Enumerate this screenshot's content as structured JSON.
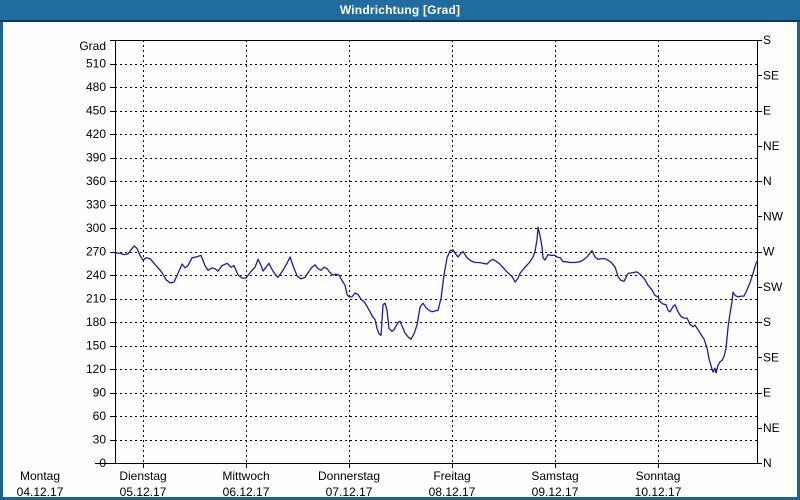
{
  "window": {
    "title": "Windrichtung [Grad]"
  },
  "colors": {
    "frame": "#1f6296",
    "titlebar_bg": "#206ca0",
    "titlebar_border": "#0b3b60",
    "plot_bg": "#fefefe",
    "grid": "#000000",
    "axis": "#000000",
    "series_line": "#1a1ab8",
    "label_text": "#000000",
    "title_text": "#ffffff"
  },
  "chart_data": {
    "type": "line",
    "title": "Windrichtung [Grad]",
    "ylabel": "Grad",
    "grid": true,
    "legend": "none",
    "y_axis": {
      "min": 0,
      "max": 540,
      "tick_step": 30,
      "unit_label": "Grad"
    },
    "y_axis_right": {
      "tick_step": 45,
      "labels": [
        {
          "deg": 540,
          "label": "S"
        },
        {
          "deg": 495,
          "label": "SE"
        },
        {
          "deg": 450,
          "label": "E"
        },
        {
          "deg": 405,
          "label": "NE"
        },
        {
          "deg": 360,
          "label": "N"
        },
        {
          "deg": 315,
          "label": "NW"
        },
        {
          "deg": 270,
          "label": "W"
        },
        {
          "deg": 225,
          "label": "SW"
        },
        {
          "deg": 180,
          "label": "S"
        },
        {
          "deg": 135,
          "label": "SE"
        },
        {
          "deg": 90,
          "label": "E"
        },
        {
          "deg": 45,
          "label": "NE"
        },
        {
          "deg": 0,
          "label": "N"
        }
      ]
    },
    "x_axis": {
      "start_t": 0.728,
      "end_t": 6.961,
      "gridline_ts": [
        1,
        2,
        3,
        4,
        5,
        6
      ],
      "days": [
        {
          "name": "Montag",
          "date": "04.12.17",
          "t": 0
        },
        {
          "name": "Dienstag",
          "date": "05.12.17",
          "t": 1
        },
        {
          "name": "Mittwoch",
          "date": "06.12.17",
          "t": 2
        },
        {
          "name": "Donnerstag",
          "date": "07.12.17",
          "t": 3
        },
        {
          "name": "Freitag",
          "date": "08.12.17",
          "t": 4
        },
        {
          "name": "Samstag",
          "date": "09.12.17",
          "t": 5
        },
        {
          "name": "Sonntag",
          "date": "10.12.17",
          "t": 6
        }
      ]
    },
    "series": [
      {
        "name": "Windrichtung",
        "unit": "Grad",
        "points": [
          [
            0.728,
            268
          ],
          [
            0.777,
            268
          ],
          [
            0.816,
            266
          ],
          [
            0.854,
            267
          ],
          [
            0.883,
            272
          ],
          [
            0.913,
            277
          ],
          [
            0.942,
            274
          ],
          [
            0.971,
            265
          ],
          [
            1.0,
            259
          ],
          [
            1.029,
            262
          ],
          [
            1.068,
            261
          ],
          [
            1.107,
            255
          ],
          [
            1.146,
            249
          ],
          [
            1.184,
            243
          ],
          [
            1.223,
            234
          ],
          [
            1.262,
            230
          ],
          [
            1.301,
            231
          ],
          [
            1.34,
            242
          ],
          [
            1.379,
            254
          ],
          [
            1.408,
            249
          ],
          [
            1.437,
            252
          ],
          [
            1.476,
            262
          ],
          [
            1.515,
            263
          ],
          [
            1.563,
            265
          ],
          [
            1.602,
            252
          ],
          [
            1.631,
            246
          ],
          [
            1.67,
            249
          ],
          [
            1.699,
            248
          ],
          [
            1.728,
            245
          ],
          [
            1.767,
            252
          ],
          [
            1.816,
            255
          ],
          [
            1.854,
            250
          ],
          [
            1.883,
            252
          ],
          [
            1.922,
            240
          ],
          [
            1.961,
            236
          ],
          [
            2.0,
            236
          ],
          [
            2.039,
            243
          ],
          [
            2.087,
            250
          ],
          [
            2.117,
            260
          ],
          [
            2.146,
            252
          ],
          [
            2.165,
            245
          ],
          [
            2.194,
            250
          ],
          [
            2.223,
            255
          ],
          [
            2.252,
            247
          ],
          [
            2.282,
            241
          ],
          [
            2.311,
            237
          ],
          [
            2.359,
            246
          ],
          [
            2.398,
            255
          ],
          [
            2.427,
            263
          ],
          [
            2.456,
            252
          ],
          [
            2.495,
            239
          ],
          [
            2.534,
            235
          ],
          [
            2.573,
            237
          ],
          [
            2.612,
            245
          ],
          [
            2.641,
            250
          ],
          [
            2.67,
            253
          ],
          [
            2.699,
            248
          ],
          [
            2.728,
            246
          ],
          [
            2.757,
            250
          ],
          [
            2.786,
            248
          ],
          [
            2.816,
            243
          ],
          [
            2.845,
            240
          ],
          [
            2.874,
            241
          ],
          [
            2.903,
            240
          ],
          [
            2.932,
            233
          ],
          [
            2.961,
            227
          ],
          [
            2.981,
            215
          ],
          [
            3.0,
            212
          ],
          [
            3.029,
            212
          ],
          [
            3.058,
            217
          ],
          [
            3.087,
            215
          ],
          [
            3.117,
            209
          ],
          [
            3.146,
            206
          ],
          [
            3.175,
            200
          ],
          [
            3.204,
            193
          ],
          [
            3.233,
            186
          ],
          [
            3.252,
            183
          ],
          [
            3.272,
            172
          ],
          [
            3.291,
            165
          ],
          [
            3.311,
            163
          ],
          [
            3.33,
            202
          ],
          [
            3.35,
            204
          ],
          [
            3.369,
            195
          ],
          [
            3.388,
            172
          ],
          [
            3.417,
            168
          ],
          [
            3.437,
            170
          ],
          [
            3.456,
            175
          ],
          [
            3.476,
            179
          ],
          [
            3.495,
            181
          ],
          [
            3.524,
            172
          ],
          [
            3.544,
            166
          ],
          [
            3.573,
            161
          ],
          [
            3.602,
            158
          ],
          [
            3.631,
            165
          ],
          [
            3.66,
            176
          ],
          [
            3.689,
            199
          ],
          [
            3.718,
            204
          ],
          [
            3.748,
            198
          ],
          [
            3.777,
            195
          ],
          [
            3.806,
            193
          ],
          [
            3.835,
            194
          ],
          [
            3.864,
            195
          ],
          [
            3.893,
            210
          ],
          [
            3.922,
            240
          ],
          [
            3.951,
            262
          ],
          [
            3.981,
            271
          ],
          [
            4.01,
            272
          ],
          [
            4.029,
            268
          ],
          [
            4.058,
            263
          ],
          [
            4.087,
            268
          ],
          [
            4.107,
            270
          ],
          [
            4.136,
            264
          ],
          [
            4.155,
            261
          ],
          [
            4.184,
            258
          ],
          [
            4.223,
            256
          ],
          [
            4.262,
            256
          ],
          [
            4.301,
            255
          ],
          [
            4.34,
            254
          ],
          [
            4.369,
            258
          ],
          [
            4.398,
            260
          ],
          [
            4.456,
            255
          ],
          [
            4.485,
            251
          ],
          [
            4.534,
            244
          ],
          [
            4.583,
            238
          ],
          [
            4.612,
            231
          ],
          [
            4.641,
            236
          ],
          [
            4.66,
            242
          ],
          [
            4.689,
            247
          ],
          [
            4.709,
            250
          ],
          [
            4.738,
            254
          ],
          [
            4.757,
            257
          ],
          [
            4.786,
            263
          ],
          [
            4.806,
            270
          ],
          [
            4.825,
            285
          ],
          [
            4.835,
            301
          ],
          [
            4.854,
            290
          ],
          [
            4.874,
            276
          ],
          [
            4.883,
            262
          ],
          [
            4.903,
            259
          ],
          [
            4.932,
            266
          ],
          [
            4.961,
            265
          ],
          [
            5.0,
            265
          ],
          [
            5.019,
            263
          ],
          [
            5.049,
            262
          ],
          [
            5.078,
            257
          ],
          [
            5.107,
            257
          ],
          [
            5.146,
            256
          ],
          [
            5.194,
            256
          ],
          [
            5.243,
            257
          ],
          [
            5.272,
            259
          ],
          [
            5.311,
            263
          ],
          [
            5.34,
            268
          ],
          [
            5.359,
            271
          ],
          [
            5.388,
            263
          ],
          [
            5.417,
            260
          ],
          [
            5.456,
            261
          ],
          [
            5.485,
            261
          ],
          [
            5.524,
            258
          ],
          [
            5.553,
            255
          ],
          [
            5.583,
            250
          ],
          [
            5.612,
            238
          ],
          [
            5.641,
            233
          ],
          [
            5.67,
            232
          ],
          [
            5.709,
            242
          ],
          [
            5.757,
            243
          ],
          [
            5.796,
            244
          ],
          [
            5.835,
            240
          ],
          [
            5.874,
            234
          ],
          [
            5.903,
            227
          ],
          [
            5.942,
            221
          ],
          [
            5.971,
            214
          ],
          [
            6.0,
            212
          ],
          [
            6.019,
            206
          ],
          [
            6.049,
            203
          ],
          [
            6.078,
            202
          ],
          [
            6.097,
            195
          ],
          [
            6.117,
            193
          ],
          [
            6.146,
            200
          ],
          [
            6.165,
            202
          ],
          [
            6.194,
            193
          ],
          [
            6.223,
            187
          ],
          [
            6.252,
            185
          ],
          [
            6.282,
            185
          ],
          [
            6.311,
            177
          ],
          [
            6.34,
            174
          ],
          [
            6.359,
            176
          ],
          [
            6.388,
            170
          ],
          [
            6.417,
            164
          ],
          [
            6.447,
            158
          ],
          [
            6.476,
            147
          ],
          [
            6.495,
            133
          ],
          [
            6.515,
            124
          ],
          [
            6.534,
            116
          ],
          [
            6.553,
            121
          ],
          [
            6.563,
            115
          ],
          [
            6.583,
            125
          ],
          [
            6.602,
            129
          ],
          [
            6.621,
            131
          ],
          [
            6.641,
            136
          ],
          [
            6.66,
            146
          ],
          [
            6.68,
            174
          ],
          [
            6.699,
            191
          ],
          [
            6.718,
            206
          ],
          [
            6.728,
            218
          ],
          [
            6.748,
            214
          ],
          [
            6.777,
            212
          ],
          [
            6.806,
            213
          ],
          [
            6.835,
            213
          ],
          [
            6.864,
            221
          ],
          [
            6.893,
            230
          ],
          [
            6.922,
            242
          ],
          [
            6.951,
            255
          ],
          [
            6.961,
            257
          ]
        ]
      }
    ]
  }
}
